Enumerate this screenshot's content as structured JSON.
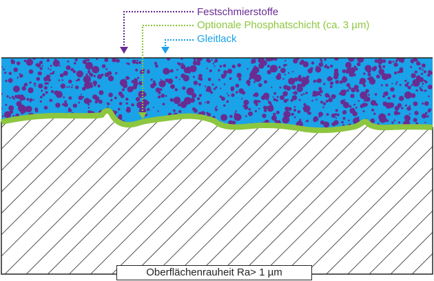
{
  "labels": {
    "solid_lubricants": "Festschmierstoffe",
    "phosphate_layer": "Optionale Phosphatschicht (ca. 3 µm)",
    "bonded_coating": "Gleitlack"
  },
  "caption": "Oberflächenrauheit Ra> 1 µm",
  "colors": {
    "solid_lubricants": "#6a2c91",
    "phosphate_layer": "#8dc63f",
    "bonded_coating": "#1aa3e8",
    "substrate_hatch": "#222222"
  }
}
